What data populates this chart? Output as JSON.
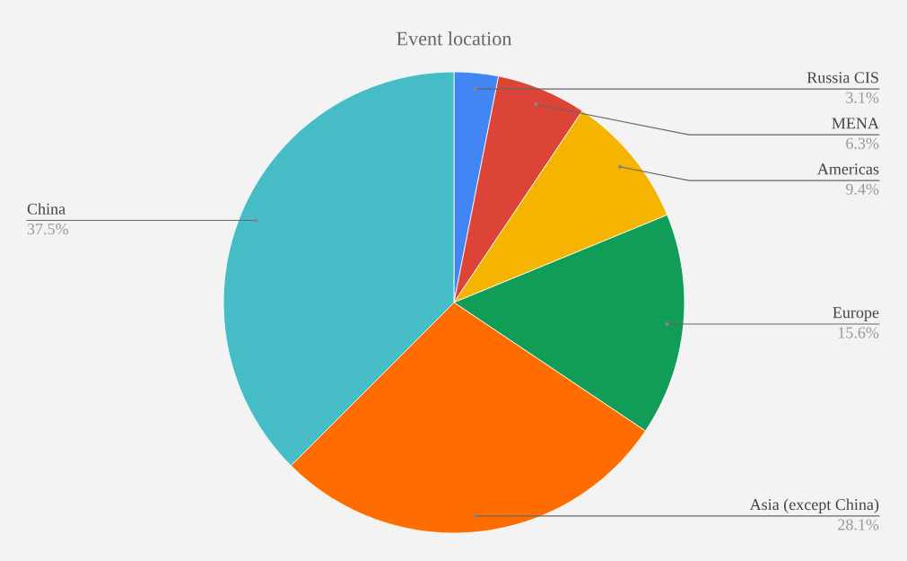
{
  "chart_data": {
    "type": "pie",
    "title": "Event location",
    "categories": [
      "Russia CIS",
      "MENA",
      "Americas",
      "Europe",
      "Asia (except China)",
      "China"
    ],
    "values": [
      3.1,
      6.3,
      9.4,
      15.6,
      28.1,
      37.5
    ],
    "colors": [
      "#4285f4",
      "#db4437",
      "#f4b400",
      "#0f9d58",
      "#ff6d00",
      "#46bdc6"
    ],
    "value_labels": [
      "3.1%",
      "6.3%",
      "9.4%",
      "15.6%",
      "28.1%",
      "37.5%"
    ],
    "legend": false
  }
}
